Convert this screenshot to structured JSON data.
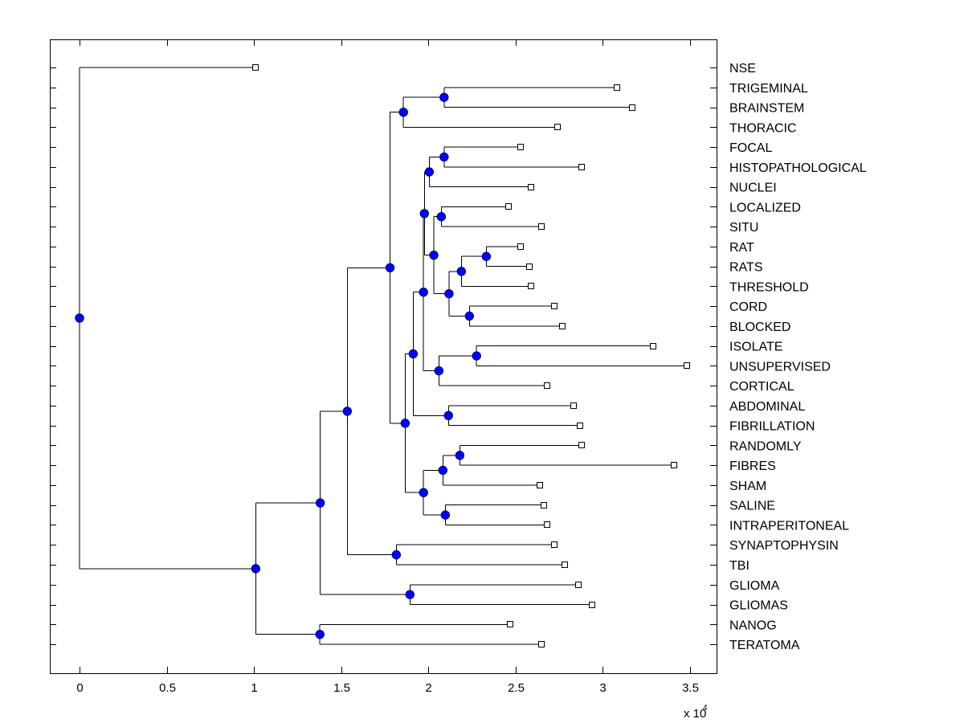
{
  "chart_data": {
    "type": "dendrogram",
    "title": "",
    "xlabel": "",
    "ylabel": "",
    "x_multiplier_label": "x 10",
    "x_multiplier_exponent": "4",
    "xlim": [
      -0.17,
      3.65
    ],
    "xticks": [
      0,
      0.5,
      1,
      1.5,
      2,
      2.5,
      3,
      3.5
    ],
    "xtick_labels": [
      "0",
      "0.5",
      "1",
      "1.5",
      "2",
      "2.5",
      "3",
      "3.5"
    ],
    "grid": false,
    "leaf_label_position": "right",
    "node_marker_color": "#0000ff",
    "leaf_marker_color": "#ffffff",
    "leaves": [
      {
        "id": "NSE",
        "label": "NSE",
        "x": 1.01
      },
      {
        "id": "TRIGEMINAL",
        "label": "TRIGEMINAL",
        "x": 3.08
      },
      {
        "id": "BRAINSTEM",
        "label": "BRAINSTEM",
        "x": 3.17
      },
      {
        "id": "THORACIC",
        "label": "THORACIC",
        "x": 2.74
      },
      {
        "id": "FOCAL",
        "label": "FOCAL",
        "x": 2.53
      },
      {
        "id": "HISTOPATHOLOGICAL",
        "label": "HISTOPATHOLOGICAL",
        "x": 2.88
      },
      {
        "id": "NUCLEI",
        "label": "NUCLEI",
        "x": 2.59
      },
      {
        "id": "LOCALIZED",
        "label": "LOCALIZED",
        "x": 2.46
      },
      {
        "id": "SITU",
        "label": "SITU",
        "x": 2.65
      },
      {
        "id": "RAT",
        "label": "RAT",
        "x": 2.53
      },
      {
        "id": "RATS",
        "label": "RATS",
        "x": 2.58
      },
      {
        "id": "THRESHOLD",
        "label": "THRESHOLD",
        "x": 2.59
      },
      {
        "id": "CORD",
        "label": "CORD",
        "x": 2.72
      },
      {
        "id": "BLOCKED",
        "label": "BLOCKED",
        "x": 2.77
      },
      {
        "id": "ISOLATE",
        "label": "ISOLATE",
        "x": 3.29
      },
      {
        "id": "UNSUPERVISED",
        "label": "UNSUPERVISED",
        "x": 3.48
      },
      {
        "id": "CORTICAL",
        "label": "CORTICAL",
        "x": 2.68
      },
      {
        "id": "ABDOMINAL",
        "label": "ABDOMINAL",
        "x": 2.83
      },
      {
        "id": "FIBRILLATION",
        "label": "FIBRILLATION",
        "x": 2.87
      },
      {
        "id": "RANDOMLY",
        "label": "RANDOMLY",
        "x": 2.88
      },
      {
        "id": "FIBRES",
        "label": "FIBRES",
        "x": 3.41
      },
      {
        "id": "SHAM",
        "label": "SHAM",
        "x": 2.64
      },
      {
        "id": "SALINE",
        "label": "SALINE",
        "x": 2.66
      },
      {
        "id": "INTRAPERITONEAL",
        "label": "INTRAPERITONEAL",
        "x": 2.68
      },
      {
        "id": "SYNAPTOPHYSIN",
        "label": "SYNAPTOPHYSIN",
        "x": 2.72
      },
      {
        "id": "TBI",
        "label": "TBI",
        "x": 2.78
      },
      {
        "id": "GLIOMA",
        "label": "GLIOMA",
        "x": 2.86
      },
      {
        "id": "GLIOMAS",
        "label": "GLIOMAS",
        "x": 2.94
      },
      {
        "id": "NANOG",
        "label": "NANOG",
        "x": 2.47
      },
      {
        "id": "TERATOMA",
        "label": "TERATOMA",
        "x": 2.65
      }
    ],
    "nodes": [
      {
        "id": "n_root",
        "x": 0.0,
        "children": [
          "NSE",
          "n_J"
        ]
      },
      {
        "id": "n_J",
        "x": 1.01,
        "children": [
          "n_I",
          "n_K"
        ]
      },
      {
        "id": "n_I",
        "x": 1.38,
        "children": [
          "n_H",
          "n_glioma"
        ]
      },
      {
        "id": "n_H",
        "x": 1.535,
        "children": [
          "n_F",
          "n_syn"
        ]
      },
      {
        "id": "n_F",
        "x": 1.78,
        "children": [
          "n_top",
          "n_E"
        ]
      },
      {
        "id": "n_top",
        "x": 1.857,
        "children": [
          "n_trig",
          "THORACIC"
        ]
      },
      {
        "id": "n_trig",
        "x": 2.09,
        "children": [
          "TRIGEMINAL",
          "BRAINSTEM"
        ]
      },
      {
        "id": "n_E",
        "x": 1.867,
        "children": [
          "n_D",
          "n_G"
        ]
      },
      {
        "id": "n_D",
        "x": 1.913,
        "children": [
          "n_C",
          "n_abd"
        ]
      },
      {
        "id": "n_C",
        "x": 1.972,
        "children": [
          "n_A",
          "n_iso2"
        ]
      },
      {
        "id": "n_A",
        "x": 1.977,
        "children": [
          "n_nuc",
          "n_B"
        ]
      },
      {
        "id": "n_nuc",
        "x": 2.005,
        "children": [
          "n_focal",
          "NUCLEI"
        ]
      },
      {
        "id": "n_focal",
        "x": 2.09,
        "children": [
          "FOCAL",
          "HISTOPATHOLOGICAL"
        ]
      },
      {
        "id": "n_B",
        "x": 2.031,
        "children": [
          "n_loc",
          "n_thr2"
        ]
      },
      {
        "id": "n_loc",
        "x": 2.074,
        "children": [
          "LOCALIZED",
          "SITU"
        ]
      },
      {
        "id": "n_thr2",
        "x": 2.118,
        "children": [
          "n_thr",
          "n_cord"
        ]
      },
      {
        "id": "n_thr",
        "x": 2.189,
        "children": [
          "n_rat",
          "THRESHOLD"
        ]
      },
      {
        "id": "n_rat",
        "x": 2.332,
        "children": [
          "RAT",
          "RATS"
        ]
      },
      {
        "id": "n_cord",
        "x": 2.235,
        "children": [
          "CORD",
          "BLOCKED"
        ]
      },
      {
        "id": "n_iso2",
        "x": 2.06,
        "children": [
          "n_iso",
          "CORTICAL"
        ]
      },
      {
        "id": "n_iso",
        "x": 2.276,
        "children": [
          "ISOLATE",
          "UNSUPERVISED"
        ]
      },
      {
        "id": "n_abd",
        "x": 2.115,
        "children": [
          "ABDOMINAL",
          "FIBRILLATION"
        ]
      },
      {
        "id": "n_G",
        "x": 1.972,
        "children": [
          "n_sham",
          "n_sal"
        ]
      },
      {
        "id": "n_sham",
        "x": 2.083,
        "children": [
          "n_rand",
          "SHAM"
        ]
      },
      {
        "id": "n_rand",
        "x": 2.18,
        "children": [
          "RANDOMLY",
          "FIBRES"
        ]
      },
      {
        "id": "n_sal",
        "x": 2.097,
        "children": [
          "SALINE",
          "INTRAPERITONEAL"
        ]
      },
      {
        "id": "n_syn",
        "x": 1.816,
        "children": [
          "SYNAPTOPHYSIN",
          "TBI"
        ]
      },
      {
        "id": "n_glioma",
        "x": 1.894,
        "children": [
          "GLIOMA",
          "GLIOMAS"
        ]
      },
      {
        "id": "n_K",
        "x": 1.378,
        "children": [
          "NANOG",
          "TERATOMA"
        ]
      }
    ]
  }
}
